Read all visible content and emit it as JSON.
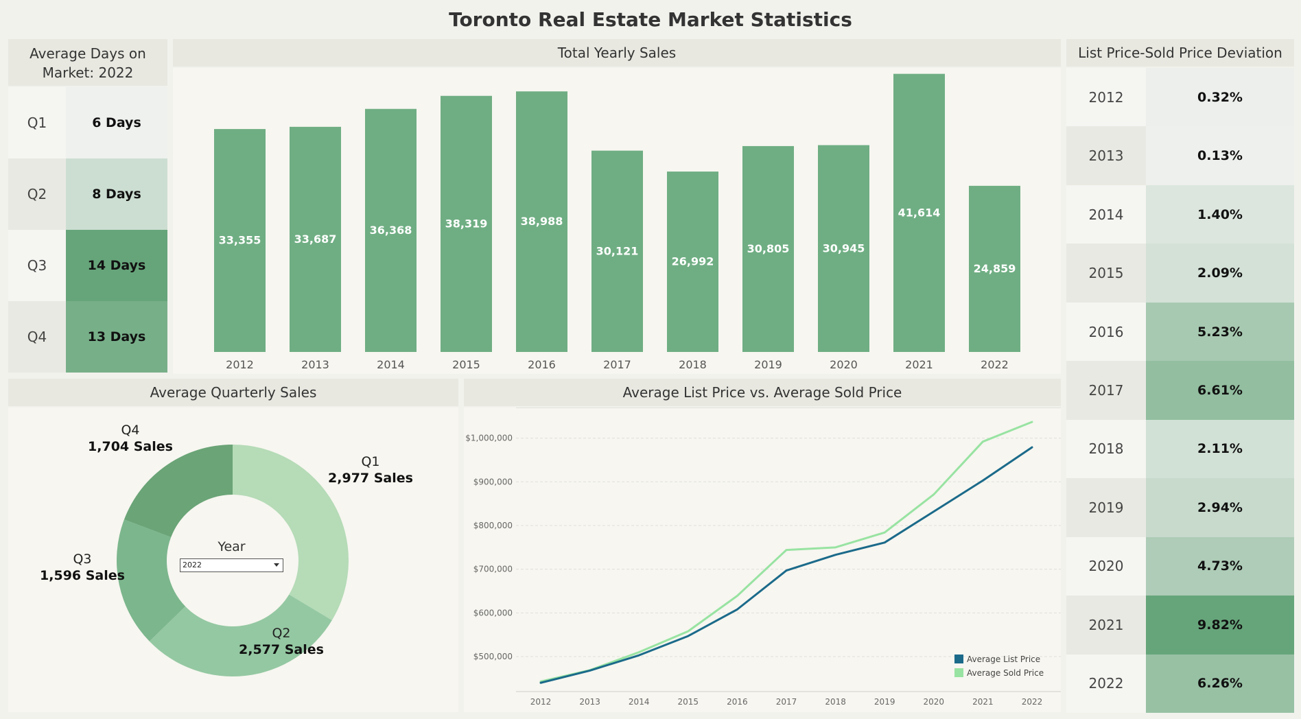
{
  "title": "Toronto Real Estate Market Statistics",
  "days_on_market": {
    "title": "Average Days on Market: 2022",
    "rows": [
      {
        "quarter": "Q1",
        "value": "6 Days",
        "days": 6
      },
      {
        "quarter": "Q2",
        "value": "8 Days",
        "days": 8
      },
      {
        "quarter": "Q3",
        "value": "14 Days",
        "days": 14
      },
      {
        "quarter": "Q4",
        "value": "13 Days",
        "days": 13
      }
    ]
  },
  "deviation": {
    "title": "List Price-Sold Price Deviation",
    "rows": [
      {
        "year": "2012",
        "value": "0.32%",
        "pct": 0.32
      },
      {
        "year": "2013",
        "value": "0.13%",
        "pct": 0.13
      },
      {
        "year": "2014",
        "value": "1.40%",
        "pct": 1.4
      },
      {
        "year": "2015",
        "value": "2.09%",
        "pct": 2.09
      },
      {
        "year": "2016",
        "value": "5.23%",
        "pct": 5.23
      },
      {
        "year": "2017",
        "value": "6.61%",
        "pct": 6.61
      },
      {
        "year": "2018",
        "value": "2.11%",
        "pct": 2.11
      },
      {
        "year": "2019",
        "value": "2.94%",
        "pct": 2.94
      },
      {
        "year": "2020",
        "value": "4.73%",
        "pct": 4.73
      },
      {
        "year": "2021",
        "value": "9.82%",
        "pct": 9.82
      },
      {
        "year": "2022",
        "value": "6.26%",
        "pct": 6.26
      }
    ]
  },
  "filter": {
    "label": "Year",
    "selected": "2022"
  },
  "chart_data": [
    {
      "type": "bar",
      "title": "Total Yearly Sales",
      "categories": [
        "2012",
        "2013",
        "2014",
        "2015",
        "2016",
        "2017",
        "2018",
        "2019",
        "2020",
        "2021",
        "2022"
      ],
      "values": [
        33355,
        33687,
        36368,
        38319,
        38988,
        30121,
        26992,
        30805,
        30945,
        41614,
        24859
      ],
      "labels": [
        "33,355",
        "33,687",
        "36,368",
        "38,319",
        "38,988",
        "30,121",
        "26,992",
        "30,805",
        "30,945",
        "41,614",
        "24,859"
      ],
      "color": "#6fae83",
      "ylim": [
        0,
        42500
      ]
    },
    {
      "type": "pie",
      "title": "Average Quarterly Sales",
      "donut": true,
      "slices": [
        {
          "name": "Q1",
          "value": 2977,
          "label": "2,977 Sales",
          "color": "#b5dbb7"
        },
        {
          "name": "Q2",
          "value": 2577,
          "label": "2,577 Sales",
          "color": "#94c8a2"
        },
        {
          "name": "Q3",
          "value": 1596,
          "label": "1,596 Sales",
          "color": "#7cb68d"
        },
        {
          "name": "Q4",
          "value": 1704,
          "label": "1,704 Sales",
          "color": "#6aa477"
        }
      ]
    },
    {
      "type": "line",
      "title": "Average List Price vs. Average Sold Price",
      "x": [
        "2012",
        "2013",
        "2014",
        "2015",
        "2016",
        "2017",
        "2018",
        "2019",
        "2020",
        "2021",
        "2022"
      ],
      "ylim": [
        420000,
        1070000
      ],
      "yticks": [
        500000,
        600000,
        700000,
        800000,
        900000,
        1000000
      ],
      "ytick_labels": [
        "$500,000",
        "$600,000",
        "$700,000",
        "$800,000",
        "$900,000",
        "$1,000,000"
      ],
      "grid": true,
      "legend_position": "bottom-right",
      "series": [
        {
          "name": "Average List Price",
          "color": "#1b6a8a",
          "values": [
            440000,
            468000,
            503000,
            547000,
            608000,
            697000,
            733000,
            761000,
            832000,
            903000,
            979000
          ]
        },
        {
          "name": "Average Sold Price",
          "color": "#98e3a2",
          "values": [
            443000,
            469000,
            510000,
            558000,
            639000,
            744000,
            750000,
            784000,
            871000,
            992000,
            1037000
          ]
        }
      ]
    }
  ]
}
